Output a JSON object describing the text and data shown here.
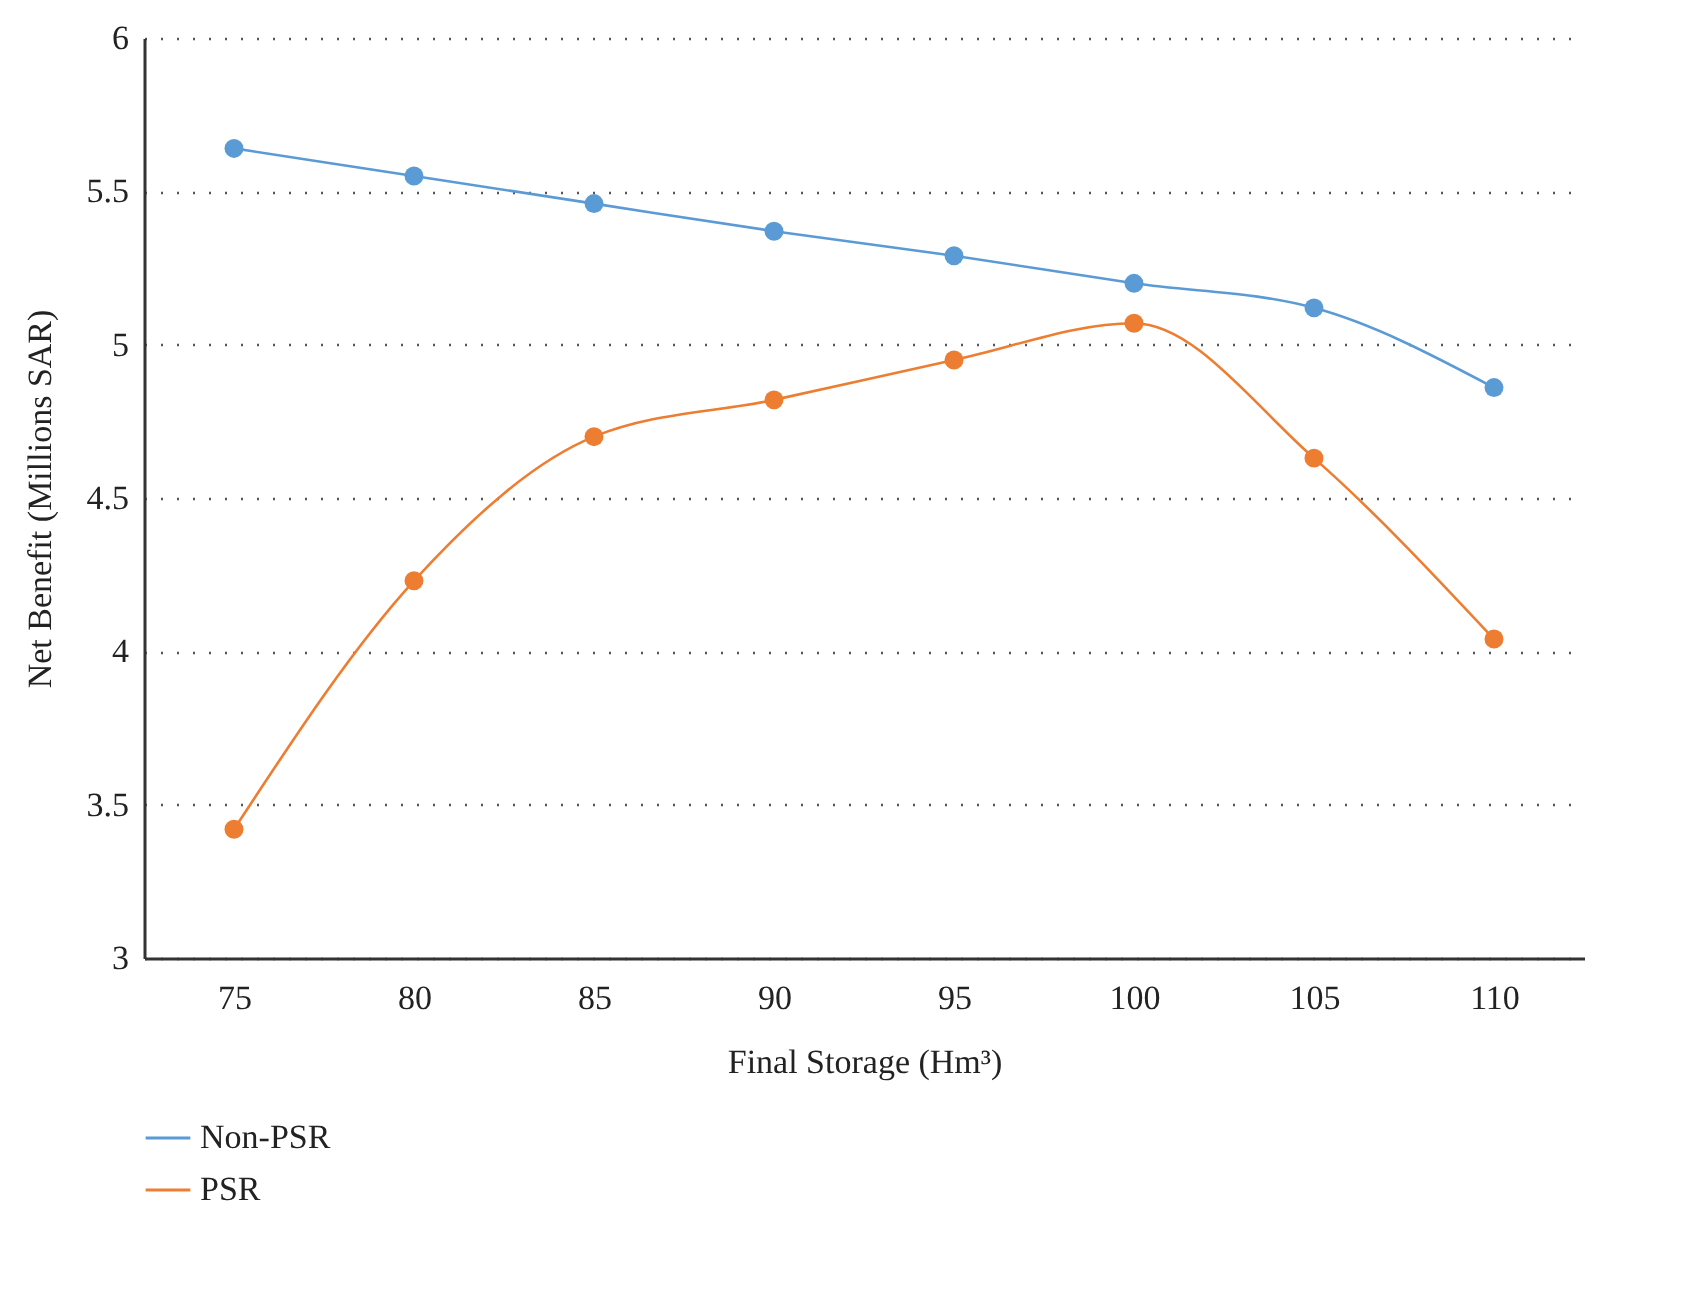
{
  "chart_data": {
    "type": "line",
    "xlabel": "Final Storage (Hm³)",
    "ylabel": "Net Benefit (Millions SAR)",
    "categories": [
      "75",
      "80",
      "85",
      "90",
      "95",
      "100",
      "105",
      "110"
    ],
    "series": [
      {
        "name": "Non-PSR",
        "color": "#5b9bd5",
        "values": [
          5.64,
          5.55,
          5.46,
          5.37,
          5.29,
          5.2,
          5.12,
          4.86
        ]
      },
      {
        "name": "PSR",
        "color": "#ed7d31",
        "values": [
          3.42,
          4.23,
          4.7,
          4.82,
          4.95,
          5.07,
          4.63,
          4.04
        ]
      }
    ],
    "ylim": [
      3,
      6
    ],
    "yticks": [
      3,
      3.5,
      4,
      4.5,
      5,
      5.5,
      6
    ],
    "grid": "y",
    "legend": "bottom left",
    "marker": "circle",
    "line_style": "solid"
  }
}
